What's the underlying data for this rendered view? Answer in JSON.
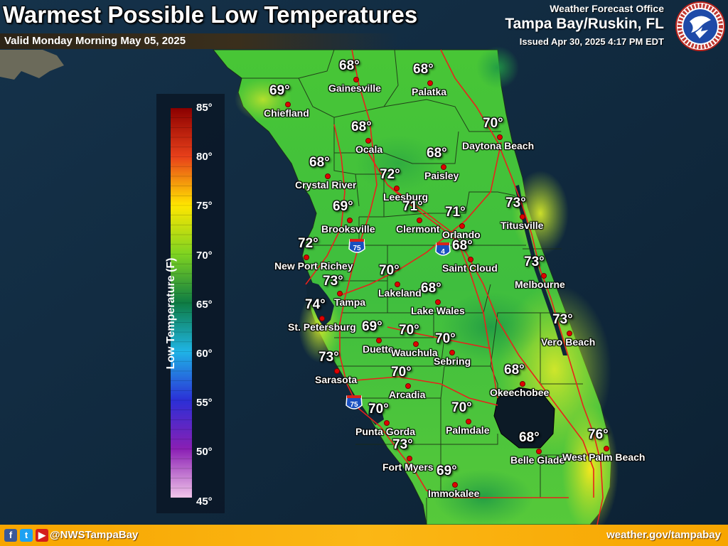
{
  "header": {
    "title": "Warmest Possible Low Temperatures",
    "subtitle": "Valid Monday Morning May 05, 2025",
    "office_label": "Weather Forecast Office",
    "office_name": "Tampa Bay/Ruskin, FL",
    "issued": "Issued Apr 30, 2025 4:17 PM EDT",
    "logo_icon": "nws-logo-icon"
  },
  "legend": {
    "title": "Low Temperature (F)",
    "ticks": [
      "85°",
      "80°",
      "75°",
      "70°",
      "65°",
      "60°",
      "55°",
      "50°",
      "45°"
    ],
    "colors": {
      "c85": "#8b0000",
      "c80": "#e8401a",
      "c75": "#ffe600",
      "c70": "#7ed321",
      "c65": "#0e7c43",
      "c60": "#1fb4e6",
      "c55": "#2b2fd6",
      "c50": "#8a1fb4",
      "c45": "#f2c6ea"
    }
  },
  "highways": {
    "i75": "75",
    "i4": "4",
    "i75_south": "75"
  },
  "cities": [
    {
      "name": "Gainesville",
      "temp": "68°"
    },
    {
      "name": "Palatka",
      "temp": "68°"
    },
    {
      "name": "Chiefland",
      "temp": "69°"
    },
    {
      "name": "Ocala",
      "temp": "68°"
    },
    {
      "name": "Daytona Beach",
      "temp": "70°"
    },
    {
      "name": "Paisley",
      "temp": "68°"
    },
    {
      "name": "Crystal River",
      "temp": "68°"
    },
    {
      "name": "Leesburg",
      "temp": "72°"
    },
    {
      "name": "Clermont",
      "temp": "71°"
    },
    {
      "name": "Orlando",
      "temp": "71°"
    },
    {
      "name": "Titusville",
      "temp": "73°"
    },
    {
      "name": "Brooksville",
      "temp": "69°"
    },
    {
      "name": "New Port Richey",
      "temp": "72°"
    },
    {
      "name": "Saint Cloud",
      "temp": "68°"
    },
    {
      "name": "Melbourne",
      "temp": "73°"
    },
    {
      "name": "Tampa",
      "temp": "73°"
    },
    {
      "name": "Lakeland",
      "temp": "70°"
    },
    {
      "name": "Lake Wales",
      "temp": "68°"
    },
    {
      "name": "St. Petersburg",
      "temp": "74°"
    },
    {
      "name": "Duette",
      "temp": "69°"
    },
    {
      "name": "Wauchula",
      "temp": "70°"
    },
    {
      "name": "Sebring",
      "temp": "70°"
    },
    {
      "name": "Vero Beach",
      "temp": "73°"
    },
    {
      "name": "Sarasota",
      "temp": "73°"
    },
    {
      "name": "Arcadia",
      "temp": "70°"
    },
    {
      "name": "Okeechobee",
      "temp": "68°"
    },
    {
      "name": "Punta Gorda",
      "temp": "70°"
    },
    {
      "name": "Palmdale",
      "temp": "70°"
    },
    {
      "name": "Fort Myers",
      "temp": "73°"
    },
    {
      "name": "Belle Glade",
      "temp": "68°"
    },
    {
      "name": "West Palm Beach",
      "temp": "76°"
    },
    {
      "name": "Immokalee",
      "temp": "69°"
    }
  ],
  "footer": {
    "social_icons": [
      "facebook-icon",
      "twitter-icon",
      "youtube-icon"
    ],
    "handle": "@NWSTampaBay",
    "website": "weather.gov/tampabay"
  }
}
